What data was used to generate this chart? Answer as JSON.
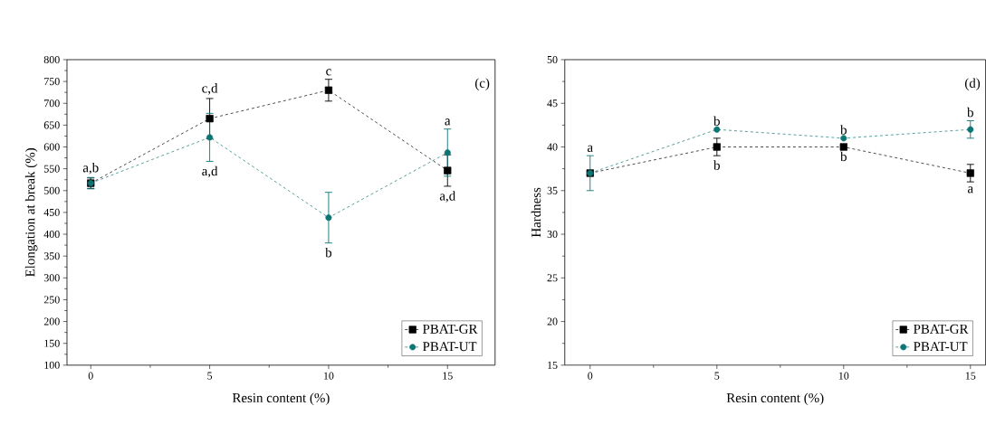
{
  "chart_data": [
    {
      "type": "line",
      "xlabel": "Resin content (%)",
      "ylabel": "Elongation at break (%)",
      "x": [
        0,
        5,
        10,
        15
      ],
      "xlim": [
        -1,
        17
      ],
      "xticks": [
        0,
        5,
        10,
        15
      ],
      "ylim": [
        100,
        800
      ],
      "yticks": [
        100,
        150,
        200,
        250,
        300,
        350,
        400,
        450,
        500,
        550,
        600,
        650,
        700,
        750,
        800
      ],
      "grid": false,
      "legend": "bottom right",
      "line_style": "dashed",
      "series": [
        {
          "name": "PBAT-GR",
          "color": "#000000",
          "marker": "square",
          "values": [
            517,
            665,
            730,
            546
          ],
          "errors": [
            12,
            46,
            25,
            36
          ],
          "value_labels": [
            "a,b",
            "c,d",
            "c",
            "a,d"
          ]
        },
        {
          "name": "PBAT-UT",
          "color": "#0e7575",
          "marker": "circle",
          "values": [
            517,
            622,
            438,
            587
          ],
          "errors": [
            13,
            55,
            58,
            54
          ],
          "value_labels": [
            null,
            "a,d",
            "b",
            "a"
          ]
        }
      ],
      "annotations": [
        "(c)"
      ]
    },
    {
      "type": "line",
      "xlabel": "Resin content (%)",
      "ylabel": "Hardness",
      "x": [
        0,
        5,
        10,
        15
      ],
      "xlim": [
        -1,
        15.6
      ],
      "xticks": [
        0,
        5,
        10,
        15
      ],
      "ylim": [
        15,
        50
      ],
      "yticks": [
        15,
        20,
        25,
        30,
        35,
        40,
        45,
        50
      ],
      "grid": false,
      "legend": "bottom right",
      "line_style": "dashed",
      "series": [
        {
          "name": "PBAT-GR",
          "color": "#000000",
          "marker": "square",
          "values": [
            37,
            40,
            40,
            37
          ],
          "errors": [
            null,
            1,
            null,
            1
          ],
          "value_labels": [
            null,
            "b",
            "b",
            "a"
          ]
        },
        {
          "name": "PBAT-UT",
          "color": "#0e7575",
          "marker": "circle",
          "values": [
            37,
            42,
            41,
            42
          ],
          "errors": [
            2,
            null,
            null,
            1
          ],
          "value_labels": [
            "a",
            "b",
            "b",
            "b"
          ]
        }
      ],
      "annotations": [
        "(d)"
      ]
    }
  ]
}
